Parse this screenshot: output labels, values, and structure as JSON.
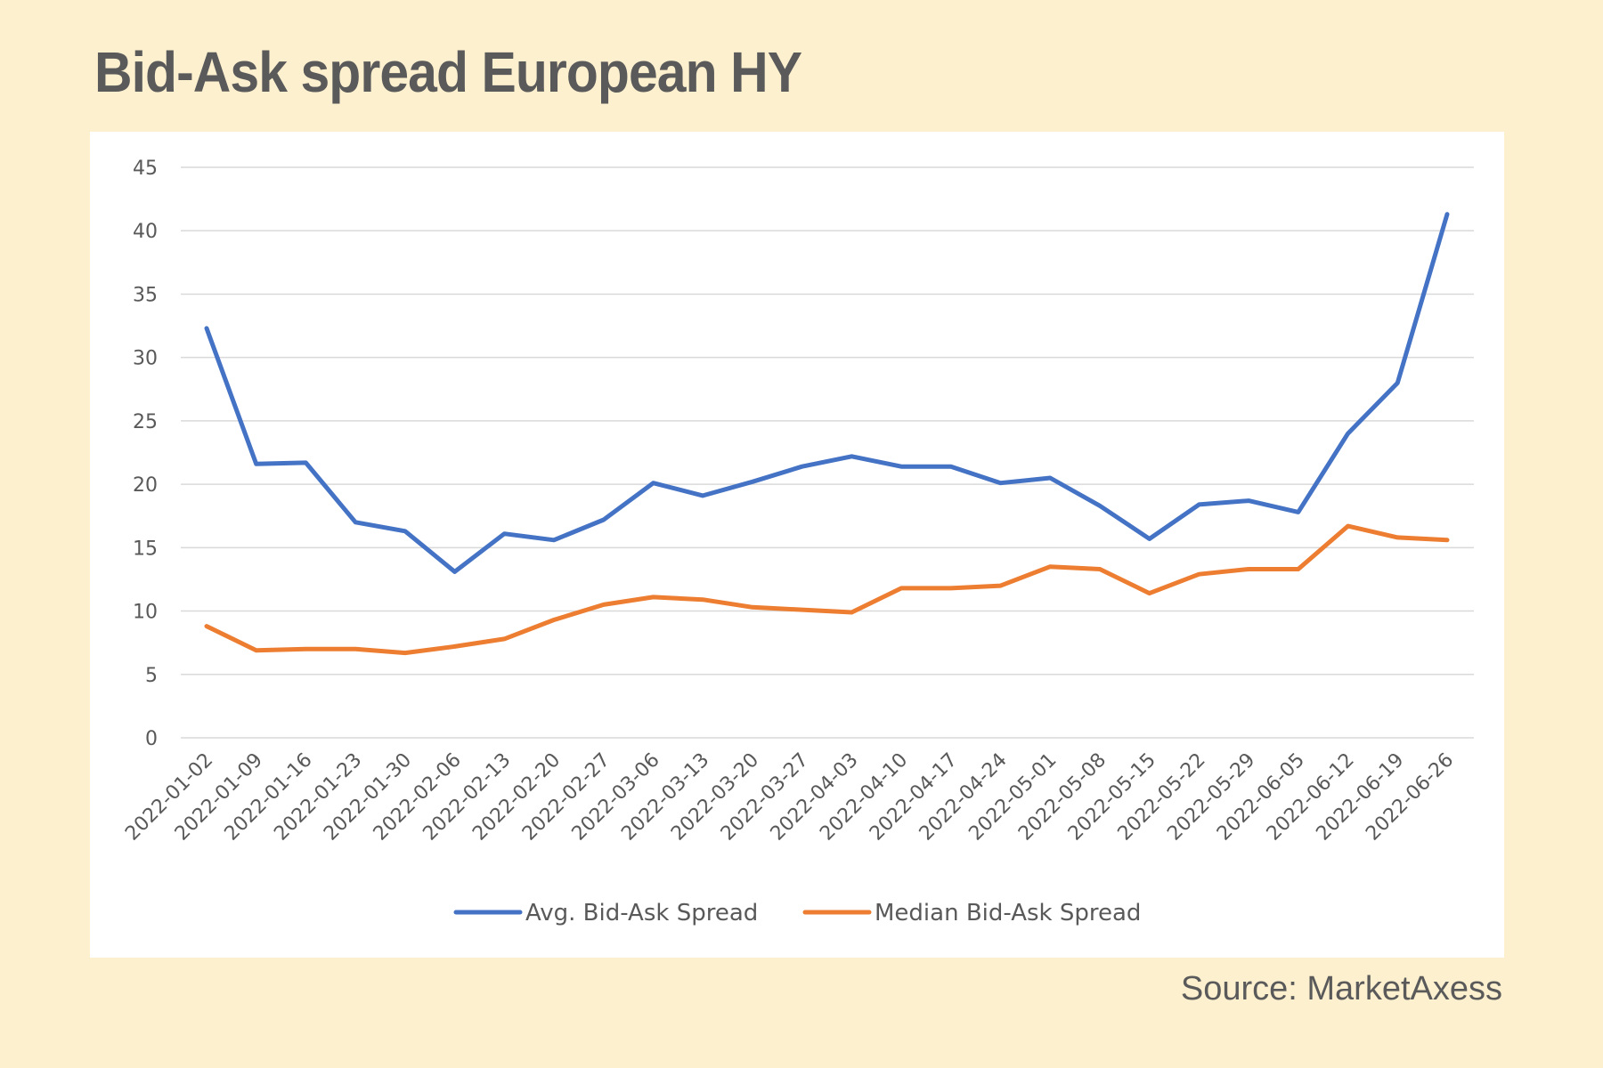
{
  "header": {
    "title": "Bid-Ask spread European HY"
  },
  "footer": {
    "source": "Source: MarketAxess"
  },
  "chart_data": {
    "type": "line",
    "title": "",
    "xlabel": "",
    "ylabel": "",
    "ylim": [
      0,
      45
    ],
    "yticks": [
      0,
      5,
      10,
      15,
      20,
      25,
      30,
      35,
      40,
      45
    ],
    "grid": true,
    "legend_position": "bottom",
    "categories": [
      "2022-01-02",
      "2022-01-09",
      "2022-01-16",
      "2022-01-23",
      "2022-01-30",
      "2022-02-06",
      "2022-02-13",
      "2022-02-20",
      "2022-02-27",
      "2022-03-06",
      "2022-03-13",
      "2022-03-20",
      "2022-03-27",
      "2022-04-03",
      "2022-04-10",
      "2022-04-17",
      "2022-04-24",
      "2022-05-01",
      "2022-05-08",
      "2022-05-15",
      "2022-05-22",
      "2022-05-29",
      "2022-06-05",
      "2022-06-12",
      "2022-06-19",
      "2022-06-26"
    ],
    "series": [
      {
        "name": "Avg. Bid-Ask Spread",
        "color": "#4472c4",
        "values": [
          32.3,
          21.6,
          21.7,
          17.0,
          16.3,
          13.1,
          16.1,
          15.6,
          17.2,
          20.1,
          19.1,
          20.2,
          21.4,
          22.2,
          21.4,
          21.4,
          20.1,
          20.5,
          18.3,
          15.7,
          18.4,
          18.7,
          17.8,
          24.0,
          28.0,
          41.3
        ]
      },
      {
        "name": "Median Bid-Ask Spread",
        "color": "#ed7d31",
        "values": [
          8.8,
          6.9,
          7.0,
          7.0,
          6.7,
          7.2,
          7.8,
          9.3,
          10.5,
          11.1,
          10.9,
          10.3,
          10.1,
          9.9,
          11.8,
          11.8,
          12.0,
          13.5,
          13.3,
          11.4,
          12.9,
          13.3,
          13.3,
          16.7,
          15.8,
          15.6
        ]
      }
    ]
  }
}
